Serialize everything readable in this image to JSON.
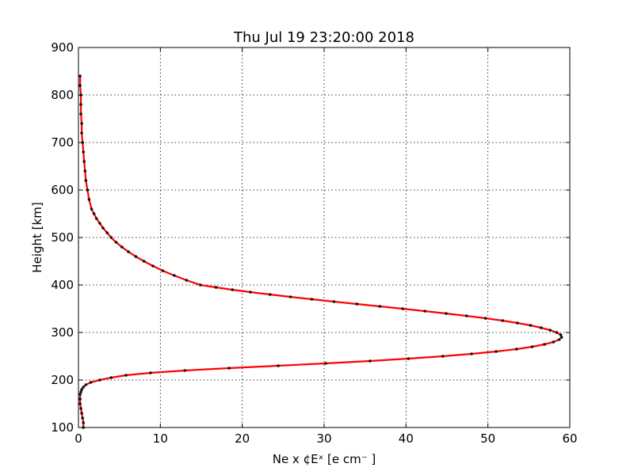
{
  "chart_data": {
    "type": "line",
    "title": "Thu Jul 19 23:20:00 2018",
    "xlabel": "Ne x ¢Eˣ  [e cm⁻ ]",
    "ylabel": "Height [km]",
    "xlim": [
      0,
      60
    ],
    "ylim": [
      100,
      900
    ],
    "xticks": [
      0,
      10,
      20,
      30,
      40,
      50,
      60
    ],
    "yticks": [
      100,
      200,
      300,
      400,
      500,
      600,
      700,
      800,
      900
    ],
    "grid": true,
    "colors": {
      "line": "#ff0000",
      "marker": "#111111"
    },
    "series": [
      {
        "x": [
          0.6,
          0.6,
          0.5,
          0.4,
          0.3,
          0.2,
          0.2,
          0.2,
          0.3,
          0.4,
          0.6,
          0.9,
          1.5,
          2.6,
          4.0,
          5.8,
          8.8,
          13.0,
          18.4,
          24.4,
          30.2,
          35.6,
          40.3,
          44.5,
          48.0,
          51.0,
          53.5,
          55.4,
          56.9,
          58.0,
          58.7,
          59.0,
          58.9,
          58.4,
          57.6,
          56.5,
          55.2,
          53.6,
          51.8,
          49.7,
          47.4,
          44.9,
          42.3,
          39.6,
          36.8,
          34.0,
          31.2,
          28.5,
          25.9,
          23.4,
          21.0,
          18.8,
          16.8,
          14.9,
          13.2,
          11.7,
          10.3,
          9.1,
          8.0,
          7.0,
          6.1,
          5.3,
          4.6,
          4.0,
          3.5,
          3.0,
          2.6,
          2.2,
          1.9,
          1.6,
          1.3,
          1.1,
          0.9,
          0.8,
          0.7,
          0.6,
          0.5,
          0.4,
          0.4,
          0.3,
          0.3,
          0.3,
          0.2,
          0.2
        ],
        "y": [
          100,
          110,
          120,
          130,
          140,
          150,
          160,
          170,
          175,
          180,
          185,
          190,
          195,
          200,
          205,
          210,
          215,
          220,
          225,
          230,
          235,
          240,
          245,
          250,
          255,
          260,
          265,
          270,
          275,
          280,
          285,
          290,
          295,
          300,
          305,
          310,
          315,
          320,
          325,
          330,
          335,
          340,
          345,
          350,
          355,
          360,
          365,
          370,
          375,
          380,
          385,
          390,
          395,
          400,
          410,
          420,
          430,
          440,
          450,
          460,
          470,
          480,
          490,
          500,
          510,
          520,
          530,
          540,
          550,
          560,
          580,
          600,
          620,
          640,
          660,
          680,
          700,
          720,
          740,
          760,
          780,
          800,
          820,
          840
        ]
      }
    ]
  }
}
